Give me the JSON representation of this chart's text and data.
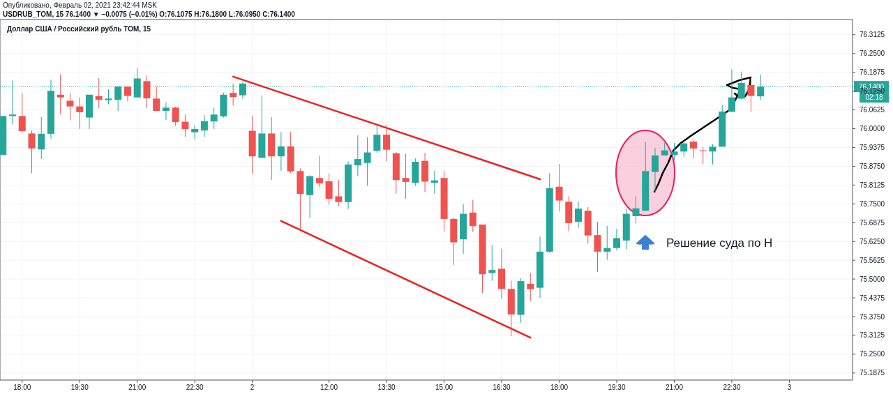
{
  "chart_data": {
    "type": "candlestick",
    "title": "Доллар США / Российский рубль TOM, 15",
    "subtitle": "USDRUB_TOM, 15  76.1400 ▼ −0.0075 (−0.01%) O:76.1075 H:76.1800 L:76.0950 C:76.1400",
    "annotations": [
      "Опубликовано, Февраль 02, 2021 23:42:44 MSK",
      "02:18",
      "Решение суда по Н"
    ],
    "categories": [
      null,
      null,
      "18:00",
      null,
      null,
      null,
      null,
      null,
      "19:30",
      null,
      null,
      null,
      null,
      null,
      "21:00",
      null,
      null,
      null,
      null,
      null,
      "22:30",
      null,
      null,
      null,
      null,
      null,
      "2",
      null,
      null,
      null,
      null,
      null,
      null,
      null,
      "12:00",
      null,
      null,
      null,
      null,
      null,
      "13:30",
      null,
      null,
      null,
      null,
      null,
      "15:00",
      null,
      null,
      null,
      null,
      null,
      "16:30",
      null,
      null,
      null,
      null,
      null,
      "18:00",
      null,
      null,
      null,
      null,
      null,
      "19:30",
      null,
      null,
      null,
      null,
      null,
      "21:00",
      null,
      null,
      null,
      null,
      null,
      "22:30",
      null,
      null,
      null,
      null,
      null,
      "3",
      null,
      null,
      null,
      null,
      null
    ],
    "ohlc": [
      [
        75.913,
        76.042,
        75.913,
        76.042
      ],
      [
        76.042,
        76.16,
        76.014,
        76.047
      ],
      [
        76.042,
        76.118,
        75.988,
        75.992
      ],
      [
        75.984,
        75.994,
        75.852,
        75.934
      ],
      [
        75.931,
        76.039,
        75.899,
        75.983
      ],
      [
        75.983,
        76.163,
        75.967,
        76.126
      ],
      [
        76.113,
        76.181,
        76.047,
        76.104
      ],
      [
        76.093,
        76.118,
        76.028,
        76.074
      ],
      [
        76.074,
        76.103,
        75.999,
        76.055
      ],
      [
        76.037,
        76.113,
        75.999,
        76.113
      ],
      [
        76.108,
        76.168,
        76.068,
        76.096
      ],
      [
        76.095,
        76.131,
        76.081,
        76.1
      ],
      [
        76.096,
        76.14,
        76.059,
        76.14
      ],
      [
        76.14,
        76.14,
        76.091,
        76.109
      ],
      [
        76.104,
        76.201,
        76.104,
        76.167
      ],
      [
        76.158,
        76.176,
        76.068,
        76.101
      ],
      [
        76.1,
        76.14,
        76.059,
        76.059
      ],
      [
        76.059,
        76.087,
        76.028,
        76.07
      ],
      [
        76.07,
        76.073,
        76.01,
        76.022
      ],
      [
        76.023,
        76.047,
        75.973,
        75.999
      ],
      [
        75.988,
        76.011,
        75.964,
        75.999
      ],
      [
        75.994,
        76.045,
        75.973,
        76.025
      ],
      [
        76.024,
        76.07,
        75.999,
        76.047
      ],
      [
        76.041,
        76.12,
        76.037,
        76.113
      ],
      [
        76.119,
        76.15,
        76.077,
        76.105
      ],
      [
        76.111,
        76.155,
        76.1,
        76.15
      ],
      [
        75.993,
        76.043,
        75.851,
        75.908
      ],
      [
        75.903,
        76.111,
        75.903,
        75.984
      ],
      [
        75.984,
        76.038,
        75.829,
        75.908
      ],
      [
        75.908,
        75.989,
        75.86,
        75.941
      ],
      [
        75.941,
        75.989,
        75.852,
        75.858
      ],
      [
        75.859,
        75.868,
        75.667,
        75.783
      ],
      [
        75.779,
        75.845,
        75.703,
        75.842
      ],
      [
        75.836,
        75.91,
        75.806,
        75.818
      ],
      [
        75.825,
        75.851,
        75.748,
        75.767
      ],
      [
        75.775,
        75.829,
        75.743,
        75.756
      ],
      [
        75.756,
        75.891,
        75.733,
        75.881
      ],
      [
        75.878,
        75.978,
        75.842,
        75.899
      ],
      [
        75.886,
        75.971,
        75.81,
        75.921
      ],
      [
        75.926,
        76.011,
        75.92,
        75.98
      ],
      [
        75.98,
        76.011,
        75.891,
        75.93
      ],
      [
        75.918,
        75.922,
        75.784,
        75.829
      ],
      [
        75.836,
        75.916,
        75.767,
        75.823
      ],
      [
        75.82,
        75.901,
        75.81,
        75.89
      ],
      [
        75.893,
        75.92,
        75.789,
        75.824
      ],
      [
        75.82,
        75.86,
        75.784,
        75.828
      ],
      [
        75.836,
        75.86,
        75.658,
        75.7
      ],
      [
        75.7,
        75.704,
        75.547,
        75.622
      ],
      [
        75.632,
        75.749,
        75.584,
        75.717
      ],
      [
        75.721,
        75.763,
        75.657,
        75.676
      ],
      [
        75.681,
        75.681,
        75.454,
        75.516
      ],
      [
        75.52,
        75.614,
        75.494,
        75.53
      ],
      [
        75.534,
        75.601,
        75.435,
        75.467
      ],
      [
        75.467,
        75.494,
        75.31,
        75.382
      ],
      [
        75.381,
        75.502,
        75.355,
        75.493
      ],
      [
        75.484,
        75.52,
        75.427,
        75.466
      ],
      [
        75.471,
        75.641,
        75.437,
        75.591
      ],
      [
        75.591,
        75.852,
        75.587,
        75.802
      ],
      [
        75.807,
        75.883,
        75.725,
        75.761
      ],
      [
        75.757,
        75.775,
        75.659,
        75.686
      ],
      [
        75.69,
        75.757,
        75.671,
        75.734
      ],
      [
        75.727,
        75.739,
        75.618,
        75.645
      ],
      [
        75.646,
        75.69,
        75.524,
        75.591
      ],
      [
        75.591,
        75.677,
        75.564,
        75.603
      ],
      [
        75.603,
        75.667,
        75.595,
        75.636
      ],
      [
        75.628,
        75.734,
        75.6,
        75.717
      ],
      [
        75.709,
        75.775,
        75.685,
        75.735
      ],
      [
        75.727,
        75.955,
        75.727,
        75.859
      ],
      [
        75.856,
        75.936,
        75.787,
        75.911
      ],
      [
        75.911,
        75.953,
        75.911,
        75.928
      ],
      [
        75.913,
        75.953,
        75.895,
        75.924
      ],
      [
        75.924,
        75.961,
        75.907,
        75.951
      ],
      [
        75.957,
        75.961,
        75.901,
        75.934
      ],
      [
        75.928,
        75.938,
        75.882,
        75.926
      ],
      [
        75.924,
        75.949,
        75.881,
        75.94
      ],
      [
        75.94,
        76.079,
        75.94,
        76.057
      ],
      [
        76.056,
        76.197,
        76.056,
        76.104
      ],
      [
        76.1,
        76.19,
        76.098,
        76.152
      ],
      [
        76.145,
        76.169,
        76.056,
        76.109
      ],
      [
        76.1075,
        76.18,
        76.095,
        76.14
      ],
      null,
      null,
      null,
      null,
      null,
      null,
      null,
      null
    ],
    "series": [
      {
        "type": "line",
        "color": "#f21c1c",
        "values": [
          null,
          null,
          null,
          null,
          null,
          null,
          null,
          null,
          null,
          null,
          null,
          null,
          null,
          null,
          null,
          null,
          null,
          null,
          null,
          null,
          null,
          null,
          null,
          null,
          76.173,
          null,
          null,
          null,
          null,
          null,
          null,
          null,
          null,
          null,
          null,
          null,
          null,
          null,
          null,
          null,
          null,
          null,
          null,
          null,
          null,
          null,
          null,
          null,
          null,
          null,
          null,
          null,
          null,
          null,
          null,
          null,
          75.832,
          null,
          null,
          null,
          null,
          null,
          null,
          null,
          null,
          null,
          null,
          null,
          null,
          null,
          null,
          null,
          null,
          null,
          null,
          null,
          null,
          null,
          null,
          null,
          null,
          null,
          null,
          null,
          null,
          null,
          null,
          null
        ]
      },
      {
        "type": "line",
        "color": "#f21c1c",
        "values": [
          null,
          null,
          null,
          null,
          null,
          null,
          null,
          null,
          null,
          null,
          null,
          null,
          null,
          null,
          null,
          null,
          null,
          null,
          null,
          null,
          null,
          null,
          null,
          null,
          null,
          null,
          null,
          null,
          null,
          75.693,
          null,
          null,
          null,
          null,
          null,
          null,
          null,
          null,
          null,
          null,
          null,
          null,
          null,
          null,
          null,
          null,
          null,
          null,
          null,
          null,
          null,
          null,
          null,
          null,
          null,
          75.305,
          null,
          null,
          null,
          null,
          null,
          null,
          null,
          null,
          null,
          null,
          null,
          null,
          null,
          null,
          null,
          null,
          null,
          null,
          null,
          null,
          null,
          null,
          null,
          null,
          null,
          null,
          null,
          null,
          null,
          null,
          null,
          null
        ]
      }
    ],
    "ylim": [
      75.164,
      76.363
    ],
    "yticks": [
      {
        "value": 75.1875,
        "label": "75.1875"
      },
      {
        "value": 75.25,
        "label": "75.2500"
      },
      75.3125,
      {
        "value": 75.375,
        "label": "75.3750"
      },
      75.4375,
      {
        "value": 75.5,
        "label": "75.5000"
      },
      75.5625,
      {
        "value": 75.625,
        "label": "75.6250"
      },
      75.6875,
      {
        "value": 75.75,
        "label": "75.7500"
      },
      75.8125,
      {
        "value": 75.875,
        "label": "75.8750"
      },
      75.9375,
      {
        "value": 76,
        "label": "76.0000"
      },
      76.0625,
      {
        "value": 76.125,
        "label": "76.1250"
      },
      76.1875,
      {
        "value": 76.25,
        "label": "76.2500"
      },
      76.3125
    ],
    "ref_lines": [
      {
        "axis": "y",
        "value": 76.14,
        "label": "76.1400",
        "color": "#26a69a",
        "line_style": "dotted"
      }
    ],
    "grid": true
  }
}
